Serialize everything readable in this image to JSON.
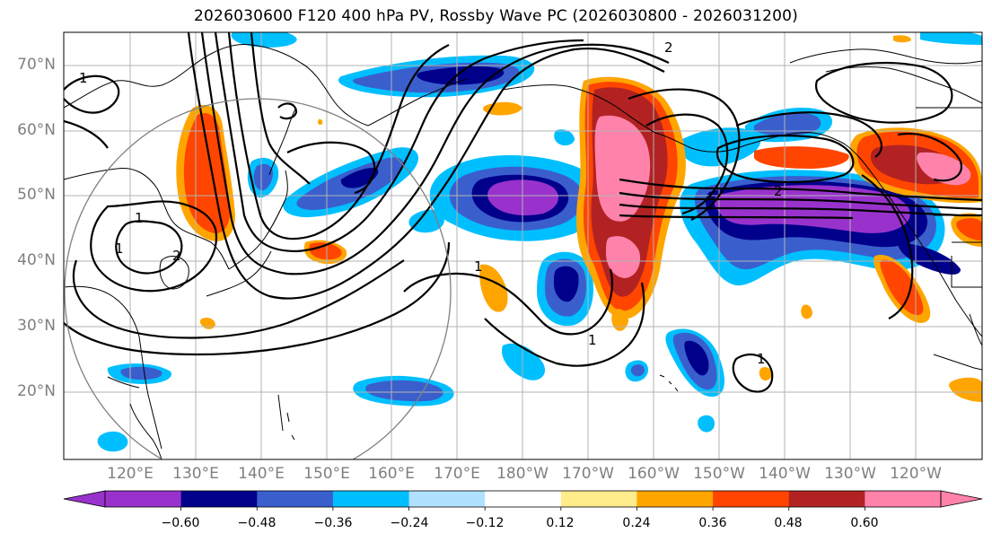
{
  "title": "2026030600 F120 400 hPa PV, Rossby Wave PC (2026030800 - 2026031200)",
  "lat_labels": [
    "70°N",
    "60°N",
    "50°N",
    "40°N",
    "30°N",
    "20°N"
  ],
  "lon_labels": [
    "120°E",
    "130°E",
    "140°E",
    "150°E",
    "160°E",
    "170°E",
    "180°W",
    "170°W",
    "160°W",
    "150°W",
    "140°W",
    "130°W",
    "120°W"
  ],
  "contour_labels": [
    "1",
    "1",
    "1",
    "2",
    "2",
    "2",
    "1",
    "1",
    "1"
  ],
  "colorbar": {
    "ticks": [
      "−0.60",
      "−0.48",
      "−0.36",
      "−0.24",
      "−0.12",
      "0.12",
      "0.24",
      "0.36",
      "0.48",
      "0.60"
    ],
    "colors": [
      "#9932cc",
      "#00008b",
      "#3a5fcd",
      "#00bfff",
      "#b0e2ff",
      "#ffffff",
      "#ffec8b",
      "#ffa500",
      "#ff4500",
      "#b22222",
      "#ff82ab"
    ],
    "extend": "both"
  },
  "colors": {
    "grid": "#b3b3b3",
    "coast": "#000000",
    "label_gray": "#7f7f7f",
    "range_circle": "#808080"
  }
}
